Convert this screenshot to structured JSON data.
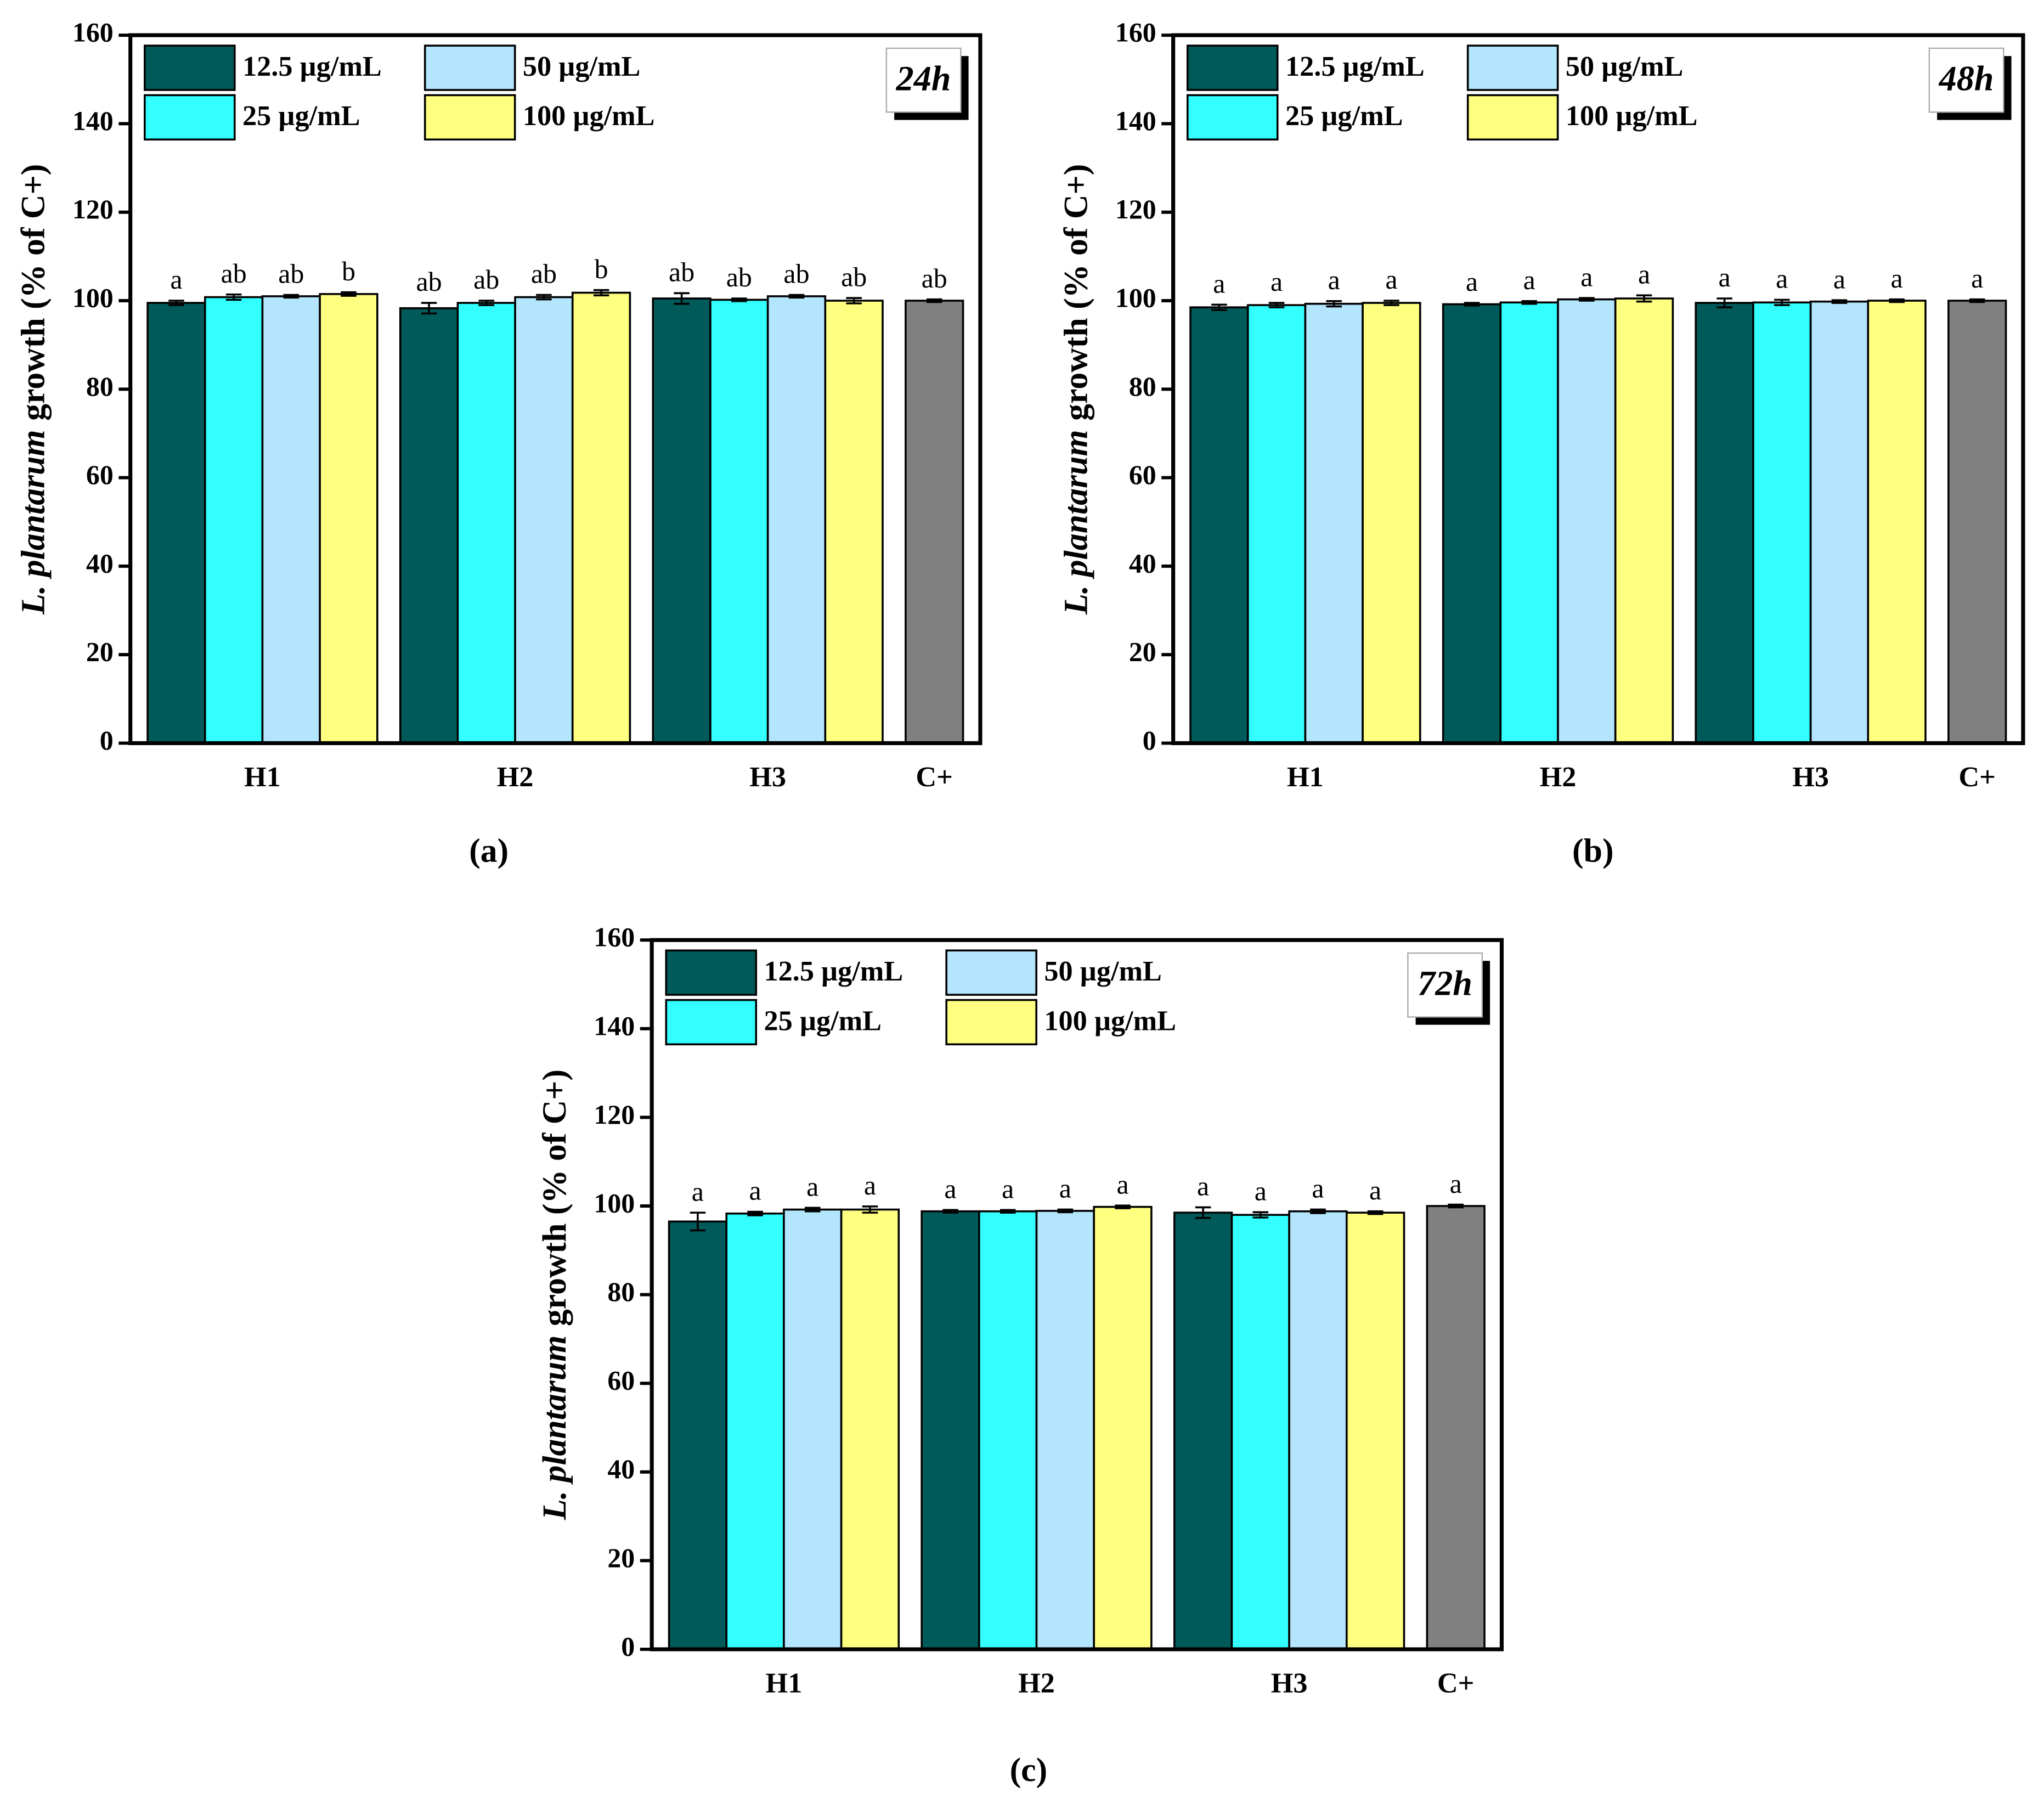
{
  "chart_data": [
    {
      "type": "bar",
      "panel_label": "(a)",
      "time_label": "24h",
      "ylabel": [
        "L. plantarum",
        "growth (% of C+)"
      ],
      "categories": [
        "H1",
        "H2",
        "H3",
        "C+"
      ],
      "ylim": [
        0,
        160
      ],
      "yticks": [
        0,
        20,
        40,
        60,
        80,
        100,
        120,
        140,
        160
      ],
      "series": [
        {
          "name": "12.5 µg/mL",
          "color": "#005a5a",
          "values": [
            99.5,
            98.3,
            100.5,
            null
          ],
          "errors": [
            0.5,
            1.2,
            1.2,
            null
          ],
          "labels": [
            "a",
            "ab",
            "ab",
            null
          ]
        },
        {
          "name": "25 µg/mL",
          "color": "#33ffff",
          "values": [
            100.8,
            99.5,
            100.2,
            null
          ],
          "errors": [
            0.6,
            0.5,
            0.3,
            null
          ],
          "labels": [
            "ab",
            "ab",
            "ab",
            null
          ]
        },
        {
          "name": "50 µg/mL",
          "color": "#b3e5fc",
          "values": [
            101,
            100.8,
            101,
            null
          ],
          "errors": [
            0.3,
            0.5,
            0.3,
            null
          ],
          "labels": [
            "ab",
            "ab",
            "ab",
            null
          ]
        },
        {
          "name": "100 µg/mL",
          "color": "#ffff80",
          "values": [
            101.5,
            101.8,
            100,
            null
          ],
          "errors": [
            0.4,
            0.6,
            0.6,
            null
          ],
          "labels": [
            "b",
            "b",
            "ab",
            null
          ]
        }
      ],
      "control": {
        "color": "#808080",
        "value": 100,
        "error": 0.3,
        "label": "ab"
      }
    },
    {
      "type": "bar",
      "panel_label": "(b)",
      "time_label": "48h",
      "ylabel": [
        "L. plantarum",
        "growth (% of C+)"
      ],
      "categories": [
        "H1",
        "H2",
        "H3",
        "C+"
      ],
      "ylim": [
        0,
        160
      ],
      "yticks": [
        0,
        20,
        40,
        60,
        80,
        100,
        120,
        140,
        160
      ],
      "series": [
        {
          "name": "12.5 µg/mL",
          "color": "#005a5a",
          "values": [
            98.5,
            99.2,
            99.5,
            null
          ],
          "errors": [
            0.6,
            0.3,
            1,
            null
          ],
          "labels": [
            "a",
            "a",
            "a",
            null
          ]
        },
        {
          "name": "25 µg/mL",
          "color": "#33ffff",
          "values": [
            99,
            99.6,
            99.6,
            null
          ],
          "errors": [
            0.5,
            0.3,
            0.6,
            null
          ],
          "labels": [
            "a",
            "a",
            "a",
            null
          ]
        },
        {
          "name": "50 µg/mL",
          "color": "#b3e5fc",
          "values": [
            99.3,
            100.3,
            99.8,
            null
          ],
          "errors": [
            0.6,
            0.3,
            0.3,
            null
          ],
          "labels": [
            "a",
            "a",
            "a",
            null
          ]
        },
        {
          "name": "100 µg/mL",
          "color": "#ffff80",
          "values": [
            99.5,
            100.5,
            100,
            null
          ],
          "errors": [
            0.5,
            0.7,
            0.3,
            null
          ],
          "labels": [
            "a",
            "a",
            "a",
            null
          ]
        }
      ],
      "control": {
        "color": "#808080",
        "value": 100,
        "error": 0.3,
        "label": "a"
      }
    },
    {
      "type": "bar",
      "panel_label": "(c)",
      "time_label": "72h",
      "ylabel": [
        "L. plantarum",
        "growth (% of C+)"
      ],
      "categories": [
        "H1",
        "H2",
        "H3",
        "C+"
      ],
      "ylim": [
        0,
        160
      ],
      "yticks": [
        0,
        20,
        40,
        60,
        80,
        100,
        120,
        140,
        160
      ],
      "series": [
        {
          "name": "12.5 µg/mL",
          "color": "#005a5a",
          "values": [
            96.5,
            98.8,
            98.5,
            null
          ],
          "errors": [
            2,
            0.3,
            1.2,
            null
          ],
          "labels": [
            "a",
            "a",
            "a",
            null
          ]
        },
        {
          "name": "25 µg/mL",
          "color": "#33ffff",
          "values": [
            98.3,
            98.8,
            98,
            null
          ],
          "errors": [
            0.4,
            0.3,
            0.6,
            null
          ],
          "labels": [
            "a",
            "a",
            "a",
            null
          ]
        },
        {
          "name": "50 µg/mL",
          "color": "#b3e5fc",
          "values": [
            99.2,
            98.9,
            98.8,
            null
          ],
          "errors": [
            0.4,
            0.3,
            0.4,
            null
          ],
          "labels": [
            "a",
            "a",
            "a",
            null
          ]
        },
        {
          "name": "100 µg/mL",
          "color": "#ffff80",
          "values": [
            99.2,
            99.8,
            98.5,
            null
          ],
          "errors": [
            0.7,
            0.3,
            0.3,
            null
          ],
          "labels": [
            "a",
            "a",
            "a",
            null
          ]
        }
      ],
      "control": {
        "color": "#808080",
        "value": 100,
        "error": 0.3,
        "label": "a"
      }
    }
  ]
}
